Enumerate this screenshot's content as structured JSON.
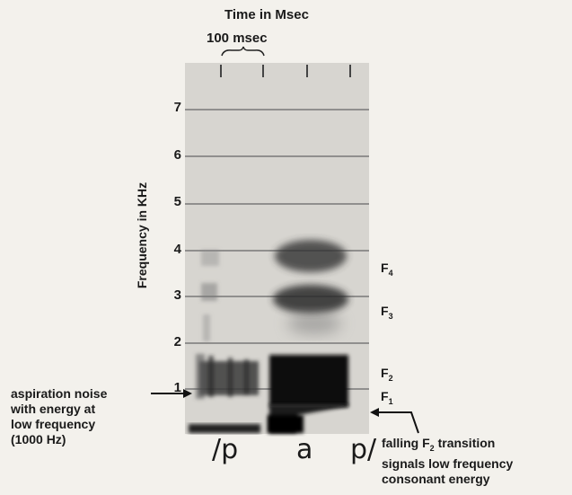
{
  "title": "Time in Msec",
  "time_scale_label": "100 msec",
  "y_axis_label": "Frequency in KHz",
  "y_ticks": [
    "7",
    "6",
    "5",
    "4",
    "3",
    "2",
    "1"
  ],
  "formants": [
    {
      "letter": "F",
      "sub": "4"
    },
    {
      "letter": "F",
      "sub": "3"
    },
    {
      "letter": "F",
      "sub": "2"
    },
    {
      "letter": "F",
      "sub": "1"
    }
  ],
  "annotation_left": "aspiration noise\nwith energy at\nlow frequency\n(1000 Hz)",
  "annotation_right_pre": "falling F",
  "annotation_right_sub": "2",
  "annotation_right_post": " transition\nsignals low frequency\nconsonant energy",
  "phonetic": [
    "/p",
    "a",
    "p/"
  ]
}
